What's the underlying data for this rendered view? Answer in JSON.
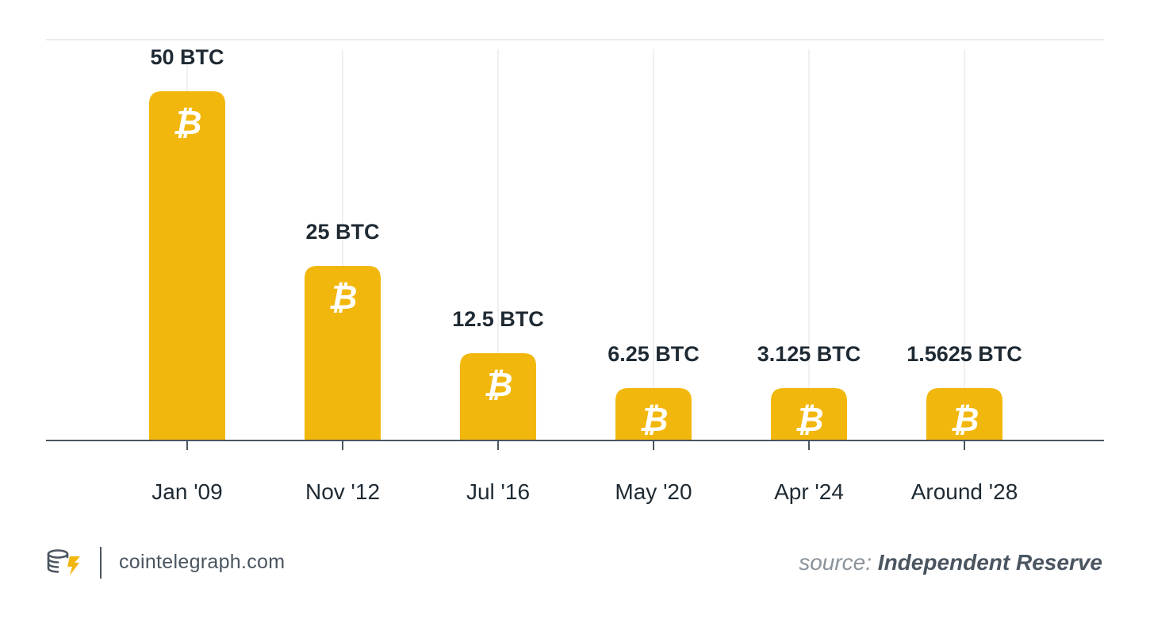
{
  "chart_data": {
    "type": "bar",
    "categories": [
      "Jan '09",
      "Nov '12",
      "Jul '16",
      "May '20",
      "Apr '24",
      "Around '28"
    ],
    "values": [
      50,
      25,
      12.5,
      6.25,
      3.125,
      1.5625
    ],
    "data_labels": [
      "50 BTC",
      "25 BTC",
      "12.5 BTC",
      "6.25 BTC",
      "3.125 BTC",
      "1.5625 BTC"
    ],
    "bar_icon": "bitcoin-icon",
    "title": "",
    "xlabel": "",
    "ylabel": "",
    "grid": "vertical",
    "colors": {
      "bar": "#F2B70D",
      "icon": "#ffffff",
      "label": "#1f2a33",
      "axis": "#4a5560",
      "grid": "#ebebeb"
    }
  },
  "footer": {
    "logo_icon": "cointelegraph-logo-icon",
    "site": "cointelegraph.com",
    "source_prefix": "source:",
    "source_name": "Independent Reserve"
  }
}
